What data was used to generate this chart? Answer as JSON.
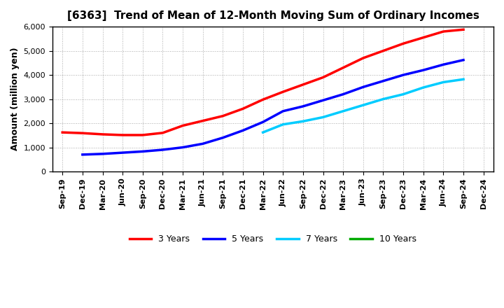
{
  "title": "[6363]  Trend of Mean of 12-Month Moving Sum of Ordinary Incomes",
  "ylabel": "Amount (million yen)",
  "background_color": "#ffffff",
  "grid_color": "#aaaaaa",
  "ylim": [
    0,
    6000
  ],
  "yticks": [
    0,
    1000,
    2000,
    3000,
    4000,
    5000,
    6000
  ],
  "series": {
    "3 Years": {
      "color": "#ff0000",
      "x": [
        "Sep-19",
        "Dec-19",
        "Mar-20",
        "Jun-20",
        "Sep-20",
        "Dec-20",
        "Mar-21",
        "Jun-21",
        "Sep-21",
        "Dec-21",
        "Mar-22",
        "Jun-22",
        "Sep-22",
        "Dec-22",
        "Mar-23",
        "Jun-23",
        "Sep-23",
        "Dec-23",
        "Mar-24",
        "Jun-24",
        "Sep-24"
      ],
      "y": [
        1620,
        1590,
        1540,
        1510,
        1510,
        1600,
        1900,
        2100,
        2300,
        2600,
        2980,
        3300,
        3600,
        3900,
        4300,
        4700,
        5000,
        5300,
        5550,
        5800,
        5880
      ]
    },
    "5 Years": {
      "color": "#0000ff",
      "x": [
        "Dec-19",
        "Mar-20",
        "Jun-20",
        "Sep-20",
        "Dec-20",
        "Mar-21",
        "Jun-21",
        "Sep-21",
        "Dec-21",
        "Mar-22",
        "Jun-22",
        "Sep-22",
        "Dec-22",
        "Mar-23",
        "Jun-23",
        "Sep-23",
        "Dec-23",
        "Mar-24",
        "Jun-24",
        "Sep-24"
      ],
      "y": [
        700,
        730,
        780,
        830,
        900,
        1000,
        1150,
        1400,
        1700,
        2050,
        2500,
        2700,
        2950,
        3200,
        3500,
        3750,
        4000,
        4200,
        4430,
        4620
      ]
    },
    "7 Years": {
      "color": "#00ccff",
      "x": [
        "Mar-22",
        "Jun-22",
        "Sep-22",
        "Dec-22",
        "Mar-23",
        "Jun-23",
        "Sep-23",
        "Dec-23",
        "Mar-24",
        "Jun-24",
        "Sep-24"
      ],
      "y": [
        1620,
        1950,
        2080,
        2250,
        2500,
        2750,
        3000,
        3200,
        3480,
        3700,
        3820
      ]
    },
    "10 Years": {
      "color": "#00aa00",
      "x": [
        "Sep-24"
      ],
      "y": [
        3820
      ]
    }
  },
  "legend": {
    "labels": [
      "3 Years",
      "5 Years",
      "7 Years",
      "10 Years"
    ],
    "colors": [
      "#ff0000",
      "#0000ff",
      "#00ccff",
      "#00aa00"
    ]
  },
  "xticks": [
    "Sep-19",
    "Dec-19",
    "Mar-20",
    "Jun-20",
    "Sep-20",
    "Dec-20",
    "Mar-21",
    "Jun-21",
    "Sep-21",
    "Dec-21",
    "Mar-22",
    "Jun-22",
    "Sep-22",
    "Dec-22",
    "Mar-23",
    "Jun-23",
    "Sep-23",
    "Dec-23",
    "Mar-24",
    "Jun-24",
    "Sep-24",
    "Dec-24"
  ]
}
